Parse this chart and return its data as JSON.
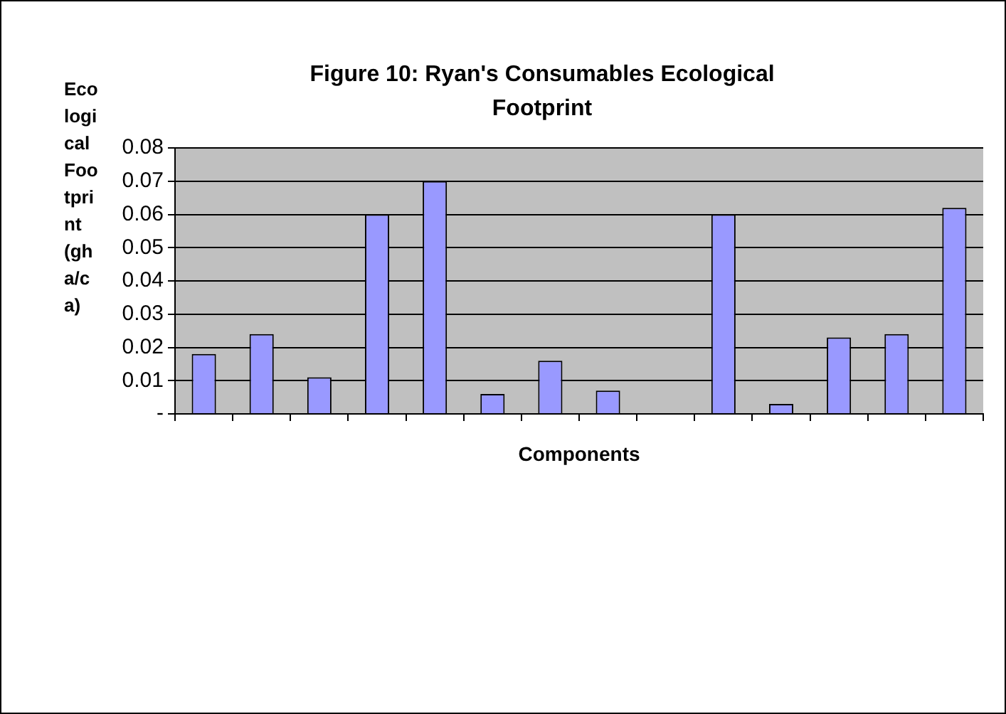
{
  "chart_data": {
    "type": "bar",
    "title": "Figure 10: Ryan's Consumables Ecological Footprint",
    "xlabel": "Components",
    "ylabel": "Ecological Footprint (gha/ca)",
    "categories": [
      null,
      null,
      null,
      null,
      null,
      null,
      null,
      null,
      null,
      null,
      null,
      null,
      null,
      null
    ],
    "values": [
      0.018,
      0.024,
      0.011,
      0.06,
      0.07,
      0.006,
      0.016,
      0.007,
      null,
      0.06,
      0.003,
      0.023,
      0.024,
      0.062
    ],
    "color": "#9999ff",
    "ylim": [
      0,
      0.08
    ],
    "yticks": [
      {
        "value": 0,
        "label": "-"
      },
      0.01,
      0.02,
      0.03,
      0.04,
      0.05,
      0.06,
      0.07,
      0.08
    ],
    "grid": "y",
    "legend": false
  }
}
